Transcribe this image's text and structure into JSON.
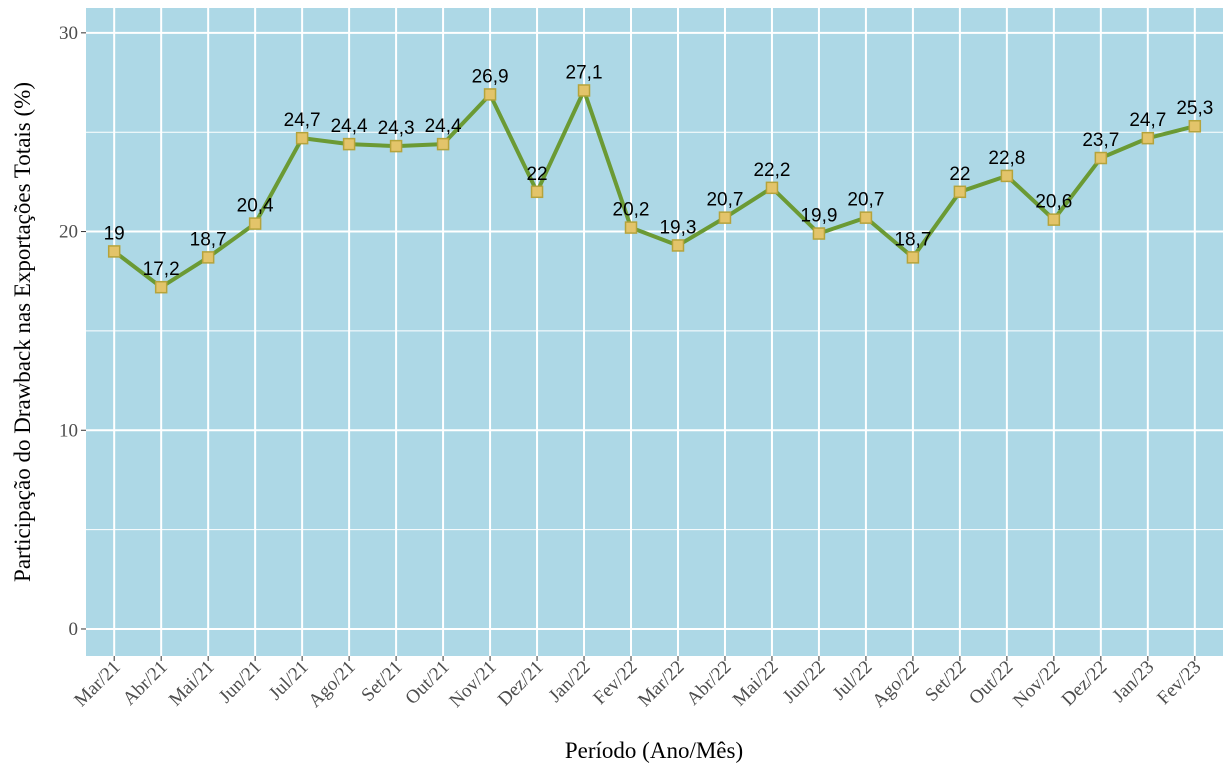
{
  "chart_data": {
    "type": "line",
    "x_label": "Período (Ano/Mês)",
    "y_label": "Participação do Drawback nas Exportações Totais (%)",
    "categories": [
      "Mar/21",
      "Abr/21",
      "Mai/21",
      "Jun/21",
      "Jul/21",
      "Ago/21",
      "Set/21",
      "Out/21",
      "Nov/21",
      "Dez/21",
      "Jan/22",
      "Fev/22",
      "Mar/22",
      "Abr/22",
      "Mai/22",
      "Jun/22",
      "Jul/22",
      "Ago/22",
      "Set/22",
      "Out/22",
      "Nov/22",
      "Dez/22",
      "Jan/23",
      "Fev/23"
    ],
    "values": [
      19,
      17.2,
      18.7,
      20.4,
      24.7,
      24.4,
      24.3,
      24.4,
      26.9,
      22,
      27.1,
      20.2,
      19.3,
      20.7,
      22.2,
      19.9,
      20.7,
      18.7,
      22,
      22.8,
      20.6,
      23.7,
      24.7,
      25.3
    ],
    "value_labels": [
      "19",
      "17,2",
      "18,7",
      "20,4",
      "24,7",
      "24,4",
      "24,3",
      "24,4",
      "26,9",
      "22",
      "27,1",
      "20,2",
      "19,3",
      "20,7",
      "22,2",
      "19,9",
      "20,7",
      "18,7",
      "22",
      "22,8",
      "20,6",
      "23,7",
      "24,7",
      "25,3"
    ],
    "color": "#6b9a34",
    "marker_color": "#e3c46a",
    "background": "#add8e6",
    "ylim": [
      -1.36,
      31.25
    ],
    "yticks": [
      0,
      10,
      20,
      30
    ],
    "grid": true
  }
}
